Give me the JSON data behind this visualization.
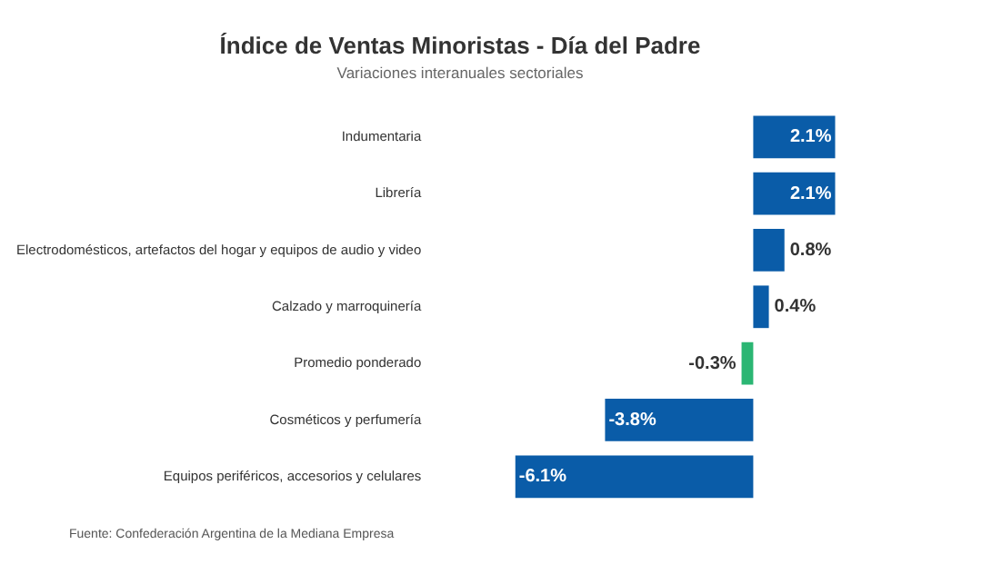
{
  "chart_data": {
    "type": "bar",
    "orientation": "horizontal",
    "title": "Índice de Ventas Minoristas - Día del Padre",
    "subtitle": "Variaciones interanuales sectoriales",
    "categories": [
      "Indumentaria",
      "Librería",
      "Electrodomésticos, artefactos del hogar y equipos de audio y video",
      "Calzado y marroquinería",
      "Promedio ponderado",
      "Cosméticos y perfumería",
      "Equipos periféricos, accesorios y celulares"
    ],
    "values": [
      2.1,
      2.1,
      0.8,
      0.4,
      -0.3,
      -3.8,
      -6.1
    ],
    "colors": [
      "#0a5ca8",
      "#0a5ca8",
      "#0a5ca8",
      "#0a5ca8",
      "#2bb673",
      "#0a5ca8",
      "#0a5ca8"
    ],
    "value_labels": [
      "2.1%",
      "2.1%",
      "0.8%",
      "0.4%",
      "-0.3%",
      "-3.8%",
      "-6.1%"
    ],
    "tick_labels": "y",
    "grid": false,
    "legend": false,
    "annotations": [
      "Fuente: Confederación Argentina de la Mediana Empresa"
    ]
  }
}
